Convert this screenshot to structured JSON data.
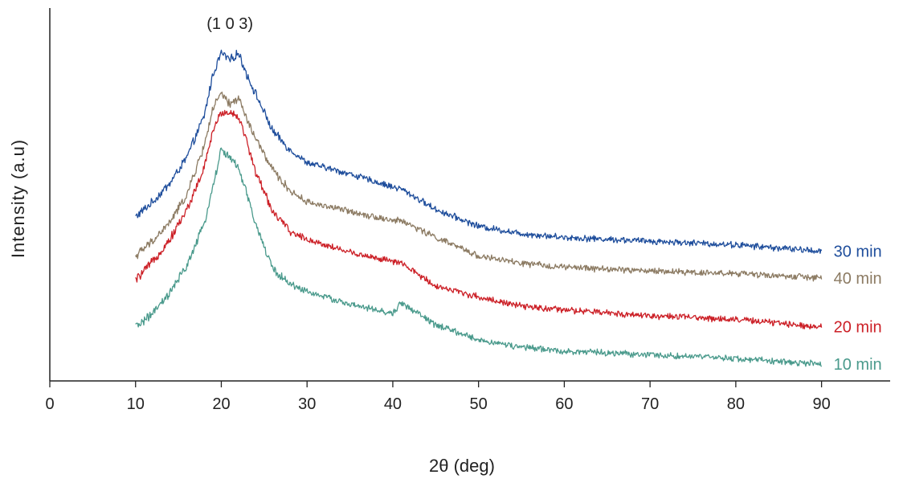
{
  "chart_data": {
    "type": "line",
    "title": "",
    "xlabel": "2θ (deg)",
    "ylabel": "Intensity (a.u)",
    "xlim": [
      0,
      98
    ],
    "ylim": [
      0,
      100
    ],
    "x_ticks": [
      0,
      10,
      20,
      30,
      40,
      50,
      60,
      70,
      80,
      90
    ],
    "y_ticks": [],
    "grid": false,
    "legend": "series labels at right end of each curve",
    "annotations": [
      {
        "text": "(1 0 3)",
        "x": 21
      }
    ],
    "x": [
      10,
      12,
      14,
      16,
      18,
      19,
      20,
      21,
      22,
      23,
      24,
      26,
      28,
      30,
      35,
      40,
      41,
      45,
      50,
      55,
      60,
      70,
      80,
      90
    ],
    "series": [
      {
        "name": "30 min",
        "color": "#1f4e9c",
        "values": [
          44,
          48,
          53,
          60,
          71,
          82,
          88,
          86,
          88,
          82,
          77,
          67,
          62,
          58.5,
          55.5,
          52,
          51.5,
          46,
          41.5,
          39.5,
          38.5,
          37.5,
          36.5,
          34.8
        ]
      },
      {
        "name": "40 min",
        "color": "#8c7b63",
        "values": [
          33.5,
          37.5,
          42.5,
          50,
          63,
          73,
          77,
          74,
          76,
          70,
          65,
          56.5,
          51,
          48,
          45.5,
          43,
          43,
          38.5,
          33.5,
          31.5,
          30.5,
          29.5,
          28.8,
          27.6
        ]
      },
      {
        "name": "20 min",
        "color": "#cc2027",
        "values": [
          27,
          32,
          38,
          46,
          57,
          67,
          72,
          72,
          71,
          64,
          56,
          45.5,
          40,
          38,
          34.5,
          32,
          31.5,
          25.5,
          22.5,
          20,
          19,
          17.5,
          16.5,
          14.5
        ]
      },
      {
        "name": "10 min",
        "color": "#4a9a8c",
        "values": [
          14.5,
          18,
          23.5,
          31,
          42,
          52,
          62,
          60,
          57,
          50,
          42,
          30,
          26,
          24,
          20.5,
          18,
          21,
          15,
          11,
          9,
          8,
          7,
          6,
          4.5
        ]
      }
    ]
  }
}
